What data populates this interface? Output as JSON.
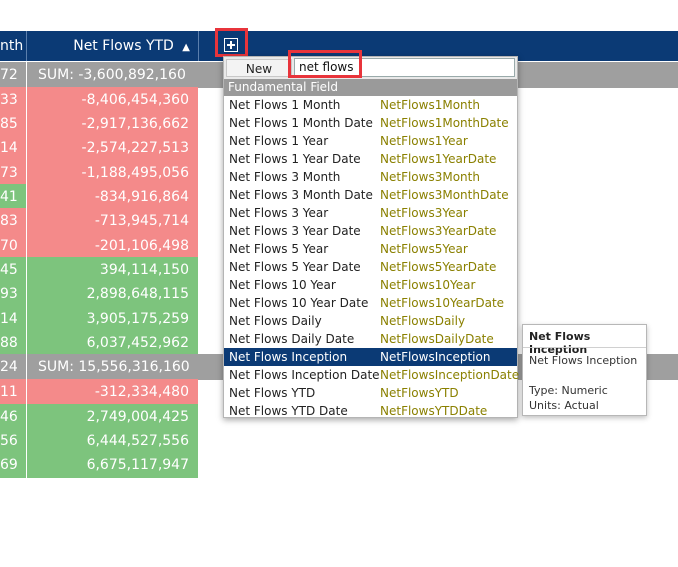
{
  "header": {
    "col_left_label": "nth",
    "col_sort_label": "Net Flows YTD",
    "sort_arrow": "▲",
    "add_icon": "plus-square-icon"
  },
  "groups": [
    {
      "left": "72",
      "sum": "SUM: -3,600,892,160"
    },
    {
      "left": "24",
      "sum": "SUM: 15,556,316,160"
    }
  ],
  "rows": [
    {
      "left": "33",
      "value": "-8,406,454,360",
      "status": "red"
    },
    {
      "left": "85",
      "value": "-2,917,136,662",
      "status": "red"
    },
    {
      "left": "14",
      "value": "-2,574,227,513",
      "status": "red"
    },
    {
      "left": "73",
      "value": "-1,188,495,056",
      "status": "red"
    },
    {
      "left": "41",
      "value": "-834,916,864",
      "status": "mixed"
    },
    {
      "left": "83",
      "value": "-713,945,714",
      "status": "red"
    },
    {
      "left": "70",
      "value": "-201,106,498",
      "status": "red"
    },
    {
      "left": "45",
      "value": "394,114,150",
      "status": "green"
    },
    {
      "left": "93",
      "value": "2,898,648,115",
      "status": "green"
    },
    {
      "left": "14",
      "value": "3,905,175,259",
      "status": "green"
    },
    {
      "left": "88",
      "value": "6,037,452,962",
      "status": "green"
    },
    {
      "left": "11",
      "value": "-312,334,480",
      "status": "red"
    },
    {
      "left": "46",
      "value": "2,749,004,425",
      "status": "green"
    },
    {
      "left": "56",
      "value": "6,444,527,556",
      "status": "green"
    },
    {
      "left": "69",
      "value": "6,675,117,947",
      "status": "green"
    }
  ],
  "dropdown": {
    "new_label": "New",
    "search_value": "net flows",
    "category_label": "Fundamental Field",
    "items": [
      {
        "name": "Net Flows 1 Month",
        "code": "NetFlows1Month"
      },
      {
        "name": "Net Flows 1 Month Date",
        "code": "NetFlows1MonthDate"
      },
      {
        "name": "Net Flows 1 Year",
        "code": "NetFlows1Year"
      },
      {
        "name": "Net Flows 1 Year Date",
        "code": "NetFlows1YearDate"
      },
      {
        "name": "Net Flows 3 Month",
        "code": "NetFlows3Month"
      },
      {
        "name": "Net Flows 3 Month Date",
        "code": "NetFlows3MonthDate"
      },
      {
        "name": "Net Flows 3 Year",
        "code": "NetFlows3Year"
      },
      {
        "name": "Net Flows 3 Year Date",
        "code": "NetFlows3YearDate"
      },
      {
        "name": "Net Flows 5 Year",
        "code": "NetFlows5Year"
      },
      {
        "name": "Net Flows 5 Year Date",
        "code": "NetFlows5YearDate"
      },
      {
        "name": "Net Flows 10 Year",
        "code": "NetFlows10Year"
      },
      {
        "name": "Net Flows 10 Year Date",
        "code": "NetFlows10YearDate"
      },
      {
        "name": "Net Flows Daily",
        "code": "NetFlowsDaily"
      },
      {
        "name": "Net Flows Daily Date",
        "code": "NetFlowsDailyDate"
      },
      {
        "name": "Net Flows Inception",
        "code": "NetFlowsInception",
        "selected": true
      },
      {
        "name": "Net Flows Inception Date",
        "code": "NetFlowsInceptionDate"
      },
      {
        "name": "Net Flows YTD",
        "code": "NetFlowsYTD"
      },
      {
        "name": "Net Flows YTD Date",
        "code": "NetFlowsYTDDate"
      }
    ]
  },
  "tooltip": {
    "title": "Net Flows Inception",
    "description": "Net Flows Inception",
    "type": "Type: Numeric",
    "units": "Units: Actual"
  },
  "colors": {
    "header": "#0b3a75",
    "negative": "#f48a8a",
    "positive": "#7dc47d",
    "group": "#9f9f9f",
    "highlight": "#e8343b"
  }
}
